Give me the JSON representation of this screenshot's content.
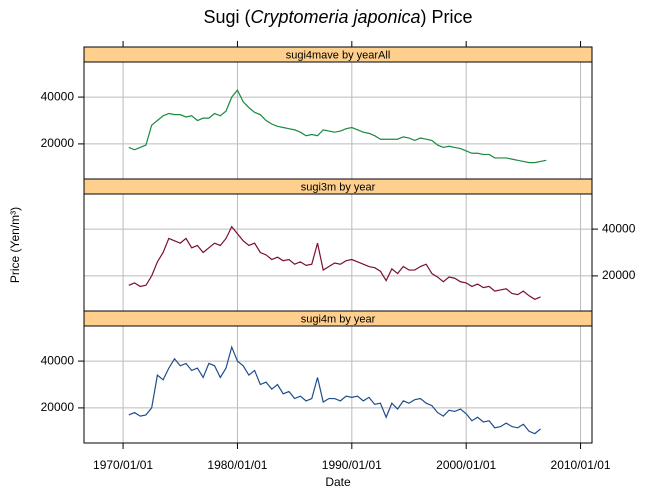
{
  "chart_data": {
    "type": "line",
    "title": [
      "Sugi (",
      "Cryptomeria japonica",
      ") Price"
    ],
    "x_label": "Date",
    "y_label": "Price (Yen/m³)",
    "xlim": [
      "1966/08/01",
      "2011/01/01"
    ],
    "xticks": [
      "1970/01/01",
      "1980/01/01",
      "1990/01/01",
      "2000/01/01",
      "2010/01/01"
    ],
    "grid": true,
    "strip_color": "#fecf8d",
    "x": [
      "1970/07/01",
      "1971/01/01",
      "1971/07/01",
      "1972/01/01",
      "1972/07/01",
      "1973/01/01",
      "1973/07/01",
      "1974/01/01",
      "1974/07/01",
      "1975/01/01",
      "1975/07/01",
      "1976/01/01",
      "1976/07/01",
      "1977/01/01",
      "1977/07/01",
      "1978/01/01",
      "1978/07/01",
      "1979/01/01",
      "1979/07/01",
      "1980/01/01",
      "1980/07/01",
      "1981/01/01",
      "1981/07/01",
      "1982/01/01",
      "1982/07/01",
      "1983/01/01",
      "1983/07/01",
      "1984/01/01",
      "1984/07/01",
      "1985/01/01",
      "1985/07/01",
      "1986/01/01",
      "1986/07/01",
      "1987/01/01",
      "1987/07/01",
      "1988/01/01",
      "1988/07/01",
      "1989/01/01",
      "1989/07/01",
      "1990/01/01",
      "1990/07/01",
      "1991/01/01",
      "1991/07/01",
      "1992/01/01",
      "1992/07/01",
      "1993/01/01",
      "1993/07/01",
      "1994/01/01",
      "1994/07/01",
      "1995/01/01",
      "1995/07/01",
      "1996/01/01",
      "1996/07/01",
      "1997/01/01",
      "1997/07/01",
      "1998/01/01",
      "1998/07/01",
      "1999/01/01",
      "1999/07/01",
      "2000/01/01",
      "2000/07/01",
      "2001/01/01",
      "2001/07/01",
      "2002/01/01",
      "2002/07/01",
      "2003/01/01",
      "2003/07/01",
      "2004/01/01",
      "2004/07/01",
      "2005/01/01",
      "2005/07/01",
      "2006/01/01",
      "2006/07/01",
      "2007/01/01"
    ],
    "panels": [
      {
        "strip": "sugi4mave by yearAll",
        "color": "#1a8a3e",
        "yaxis": "left",
        "ylim": [
          5000,
          55000
        ],
        "yticks": [
          20000,
          40000
        ],
        "values": [
          18500,
          17500,
          18500,
          19500,
          28000,
          30000,
          32000,
          33000,
          32500,
          32500,
          31500,
          32000,
          30000,
          31000,
          31000,
          33000,
          32000,
          34000,
          40000,
          43000,
          38000,
          35500,
          33500,
          32500,
          30000,
          28500,
          27500,
          27000,
          26500,
          26000,
          25000,
          23500,
          24000,
          23500,
          26000,
          25500,
          25000,
          25500,
          26500,
          27000,
          26000,
          25000,
          24500,
          23500,
          22000,
          22000,
          22000,
          22000,
          23000,
          22500,
          21500,
          22500,
          22000,
          21500,
          19500,
          18500,
          19000,
          18500,
          18000,
          17000,
          16000,
          16000,
          15500,
          15500,
          14000,
          14000,
          14000,
          13500,
          13000,
          12500,
          12000,
          12000,
          12500,
          13000
        ]
      },
      {
        "strip": "sugi3m by year",
        "color": "#7a0e3a",
        "yaxis": "right",
        "ylim": [
          5000,
          55000
        ],
        "yticks": [
          20000,
          40000
        ],
        "values": [
          16000,
          17000,
          15500,
          16000,
          20000,
          26000,
          30000,
          36000,
          35000,
          34000,
          36000,
          32000,
          33000,
          30000,
          32000,
          34000,
          33000,
          36000,
          41000,
          38000,
          35000,
          33000,
          34000,
          30000,
          29000,
          27000,
          28000,
          26500,
          27000,
          25000,
          26000,
          24500,
          25000,
          34000,
          22500,
          24000,
          25500,
          25000,
          26500,
          27000,
          26000,
          25000,
          24000,
          23500,
          22000,
          18000,
          23000,
          21000,
          24000,
          22500,
          22500,
          24000,
          25000,
          21000,
          19500,
          17500,
          19500,
          19000,
          17500,
          17000,
          15500,
          16500,
          15000,
          15500,
          13500,
          14000,
          14500,
          12500,
          12000,
          13500,
          11500,
          10000,
          11000,
          null
        ]
      },
      {
        "strip": "sugi4m by year",
        "color": "#1f4e8c",
        "yaxis": "left",
        "ylim": [
          5000,
          55000
        ],
        "yticks": [
          20000,
          40000
        ],
        "values": [
          17000,
          18000,
          16500,
          17000,
          20000,
          34000,
          32000,
          37000,
          41000,
          38000,
          39000,
          36000,
          37000,
          33000,
          39000,
          38000,
          33000,
          37000,
          46000,
          40000,
          38000,
          34000,
          36000,
          30000,
          31000,
          28000,
          30000,
          26000,
          27000,
          24000,
          25000,
          23000,
          24000,
          33000,
          22500,
          24000,
          24000,
          23000,
          25000,
          24500,
          25000,
          23000,
          24500,
          21500,
          22000,
          16000,
          22000,
          19500,
          23000,
          22000,
          23500,
          24000,
          22000,
          21000,
          18000,
          16500,
          19000,
          18500,
          19500,
          17500,
          14500,
          16000,
          14000,
          14500,
          11500,
          12000,
          13500,
          12000,
          11500,
          13000,
          10000,
          9000,
          11000,
          null
        ]
      }
    ]
  }
}
